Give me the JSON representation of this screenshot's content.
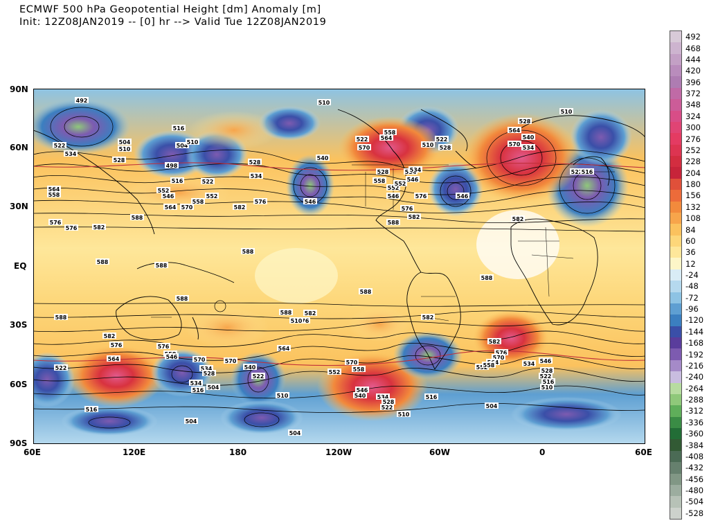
{
  "title": {
    "line1": "ECMWF 500 hPa Geopotential Height [dm] Anomaly [m]",
    "line2": "Init: 12Z08JAN2019 -- [0] hr --> Valid Tue 12Z08JAN2019"
  },
  "axes": {
    "lat_labels": [
      "90N",
      "60N",
      "30N",
      "EQ",
      "30S",
      "60S",
      "90S"
    ],
    "lon_labels": [
      "60E",
      "120E",
      "180",
      "120W",
      "60W",
      "0",
      "60E"
    ]
  },
  "colorbar": {
    "labels": [
      "492",
      "468",
      "444",
      "420",
      "396",
      "372",
      "348",
      "324",
      "300",
      "276",
      "252",
      "228",
      "204",
      "180",
      "156",
      "132",
      "108",
      "84",
      "60",
      "36",
      "12",
      "-24",
      "-48",
      "-72",
      "-96",
      "-120",
      "-144",
      "-168",
      "-192",
      "-216",
      "-240",
      "-264",
      "-288",
      "-312",
      "-336",
      "-360",
      "-384",
      "-408",
      "-432",
      "-456",
      "-480",
      "-504",
      "-528"
    ],
    "colors": [
      "#d8cad8",
      "#cdb4cf",
      "#c3a0c5",
      "#b98cbc",
      "#ae7cb2",
      "#c06aa6",
      "#cc5c98",
      "#d84d87",
      "#e04474",
      "#e43b62",
      "#dd3451",
      "#d32d40",
      "#c7243a",
      "#e0503a",
      "#ec6b3a",
      "#f28a3c",
      "#f7a54b",
      "#fbc25e",
      "#fdd77a",
      "#fee79a",
      "#fdf6c8",
      "#d9ecf6",
      "#b5d9ee",
      "#8dc3e4",
      "#5e9fd2",
      "#3b7fc0",
      "#3a4fa8",
      "#5a3d9c",
      "#7d5bb0",
      "#a58ac8",
      "#c9bde0",
      "#b7dca0",
      "#8fc87a",
      "#5fae5a",
      "#3a8c45",
      "#226d36",
      "#325a34",
      "#4b6b55",
      "#66806e",
      "#819785",
      "#9cad9f",
      "#b7c2b7",
      "#cdd2cc"
    ]
  },
  "contour_labels": [
    "492",
    "522",
    "534",
    "528",
    "504",
    "510",
    "516",
    "504",
    "510",
    "498",
    "522",
    "516",
    "528",
    "534",
    "546",
    "552",
    "558",
    "564",
    "570",
    "576",
    "582",
    "588",
    "510",
    "522",
    "528",
    "534",
    "540",
    "546",
    "552",
    "558",
    "564",
    "570",
    "576",
    "582",
    "588",
    "546",
    "576",
    "582",
    "588",
    "576",
    "582",
    "588",
    "588",
    "588",
    "588",
    "588",
    "588",
    "582",
    "576",
    "564",
    "552",
    "558",
    "570",
    "546",
    "540",
    "534",
    "528",
    "522",
    "516",
    "510",
    "504",
    "516",
    "510",
    "504",
    "534",
    "522",
    "564",
    "570",
    "576",
    "558",
    "546",
    "540",
    "534",
    "528",
    "522",
    "516",
    "510",
    "582",
    "576",
    "570",
    "564",
    "552",
    "558",
    "546",
    "534",
    "528",
    "522",
    "516",
    "510",
    "504",
    "504",
    "588",
    "582",
    "576",
    "570",
    "564",
    "558",
    "552",
    "546",
    "540",
    "534",
    "528",
    "522",
    "516",
    "510",
    "510",
    "522",
    "528",
    "534",
    "546",
    "552",
    "558",
    "564",
    "570",
    "576",
    "582"
  ]
}
